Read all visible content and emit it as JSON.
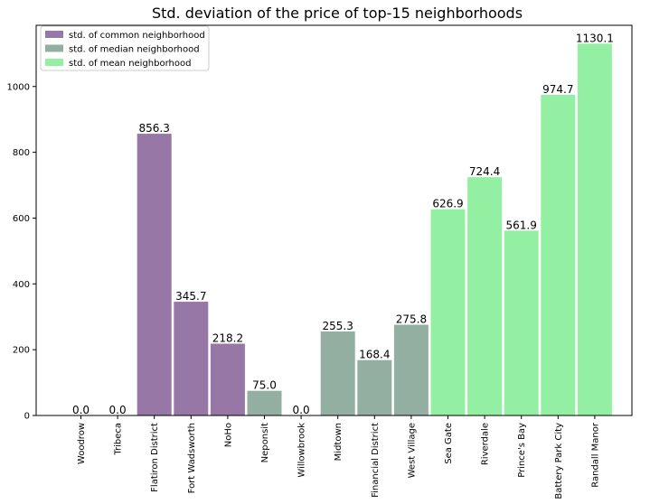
{
  "chart_data": {
    "type": "bar",
    "title": "Std. deviation of the price of top-15 neighborhoods",
    "xlabel": "",
    "ylabel": "",
    "ylim": [
      0,
      1186
    ],
    "yticks": [
      0,
      200,
      400,
      600,
      800,
      1000
    ],
    "grid": false,
    "legend_position": "top-left",
    "categories": [
      "Woodrow",
      "Tribeca",
      "Flatiron District",
      "Fort Wadsworth",
      "NoHo",
      "Neponsit",
      "Willowbrook",
      "Midtown",
      "Financial District",
      "West Village",
      "Sea Gate",
      "Riverdale",
      "Prince's Bay",
      "Battery Park City",
      "Randall Manor"
    ],
    "values": [
      0.0,
      0.0,
      856.3,
      345.7,
      218.2,
      75.0,
      0.0,
      255.3,
      168.4,
      275.8,
      626.9,
      724.4,
      561.9,
      974.7,
      1130.1
    ],
    "value_labels": [
      "0.0",
      "0.0",
      "856.3",
      "345.7",
      "218.2",
      "75.0",
      "0.0",
      "255.3",
      "168.4",
      "275.8",
      "626.9",
      "724.4",
      "561.9",
      "974.7",
      "1130.1"
    ],
    "groups": [
      0,
      0,
      0,
      0,
      0,
      1,
      1,
      1,
      1,
      1,
      2,
      2,
      2,
      2,
      2
    ],
    "series": [
      {
        "name": "std. of common neighborhood",
        "color": "#9677a5"
      },
      {
        "name": "std. of median neighborhood",
        "color": "#93afa1"
      },
      {
        "name": "std. of mean neighborhood",
        "color": "#93f0a3"
      }
    ]
  }
}
